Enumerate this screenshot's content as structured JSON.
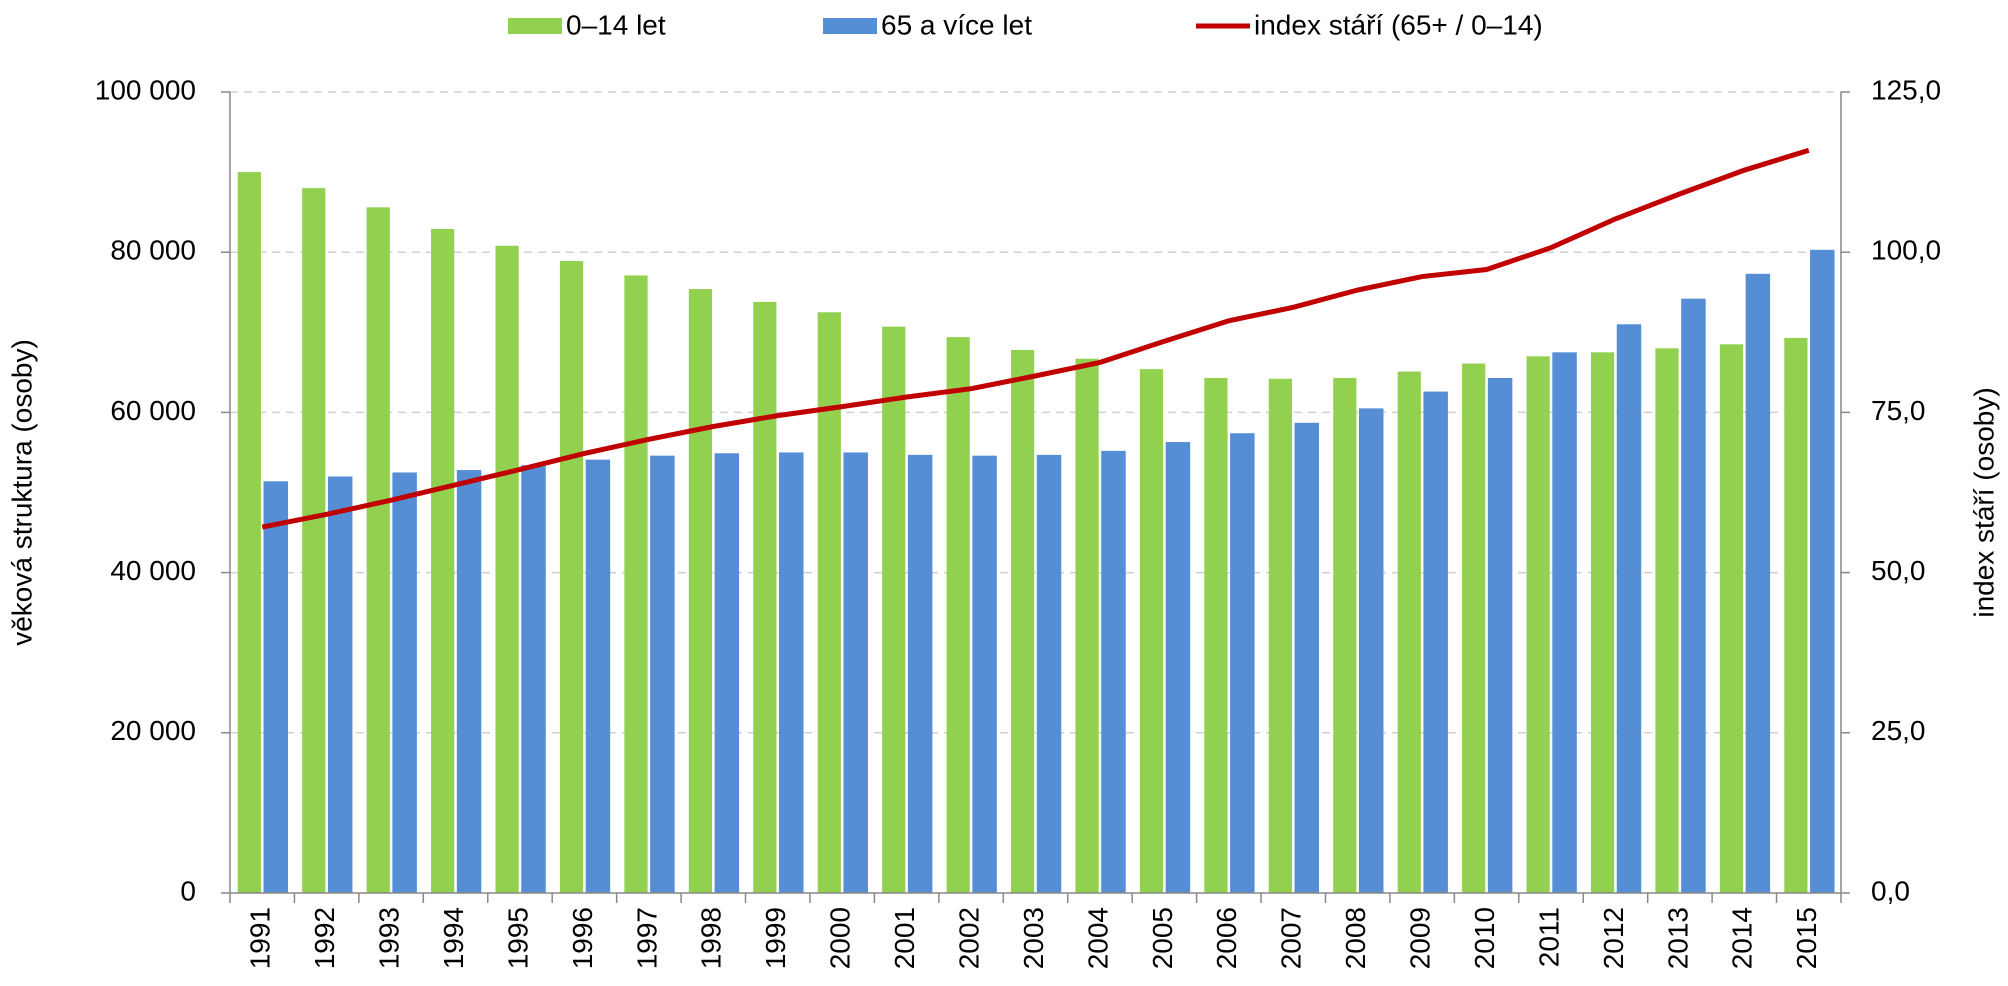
{
  "chart_data": {
    "type": "bar_line",
    "categories": [
      "1991",
      "1992",
      "1993",
      "1994",
      "1995",
      "1996",
      "1997",
      "1998",
      "1999",
      "2000",
      "2001",
      "2002",
      "2003",
      "2004",
      "2005",
      "2006",
      "2007",
      "2008",
      "2009",
      "2010",
      "2011",
      "2012",
      "2013",
      "2014",
      "2015"
    ],
    "series": [
      {
        "name": "0–14 let",
        "color": "#92d050",
        "type": "bar",
        "values": [
          90000,
          88000,
          85600,
          82900,
          80800,
          78900,
          77100,
          75400,
          73800,
          72500,
          70700,
          69400,
          67800,
          66700,
          65400,
          64300,
          64200,
          64300,
          65100,
          66100,
          67000,
          67500,
          68000,
          68500,
          69300
        ]
      },
      {
        "name": "65 a více let",
        "color": "#558ed5",
        "type": "bar",
        "values": [
          51400,
          52000,
          52500,
          52800,
          53400,
          54100,
          54600,
          54900,
          55000,
          55000,
          54700,
          54600,
          54700,
          55200,
          56300,
          57400,
          58700,
          60500,
          62600,
          64300,
          67500,
          71000,
          74200,
          77300,
          80300
        ]
      },
      {
        "name": "index stáří (65+ / 0–14)",
        "color": "#c00000",
        "type": "line",
        "axis": "y2",
        "values": [
          57.1,
          59.1,
          61.3,
          63.7,
          66.1,
          68.6,
          70.8,
          72.8,
          74.5,
          75.9,
          77.4,
          78.7,
          80.7,
          82.8,
          86.1,
          89.3,
          91.4,
          94.1,
          96.2,
          97.3,
          100.7,
          105.2,
          109.1,
          112.8,
          115.9
        ]
      }
    ],
    "ylabel": "věková struktura (osoby)",
    "y2label": "index  stáří (osoby)",
    "ylim": [
      0,
      100000
    ],
    "yticks": [
      0,
      {
        "value": 20000,
        "label": "20 000"
      },
      {
        "value": 40000,
        "label": "40 000"
      },
      {
        "value": 60000,
        "label": "60 000"
      },
      {
        "value": 80000,
        "label": "80 000"
      },
      {
        "value": 100000,
        "label": "100 000"
      }
    ],
    "y2lim": [
      0,
      125
    ],
    "y2ticks": [
      {
        "value": 0,
        "label": "0,0"
      },
      {
        "value": 25,
        "label": "25,0"
      },
      {
        "value": 50,
        "label": "50,0"
      },
      {
        "value": 75,
        "label": "75,0"
      },
      {
        "value": 100,
        "label": "100,0"
      },
      {
        "value": 125,
        "label": "125,0"
      }
    ],
    "grid": true,
    "legend": "top"
  }
}
